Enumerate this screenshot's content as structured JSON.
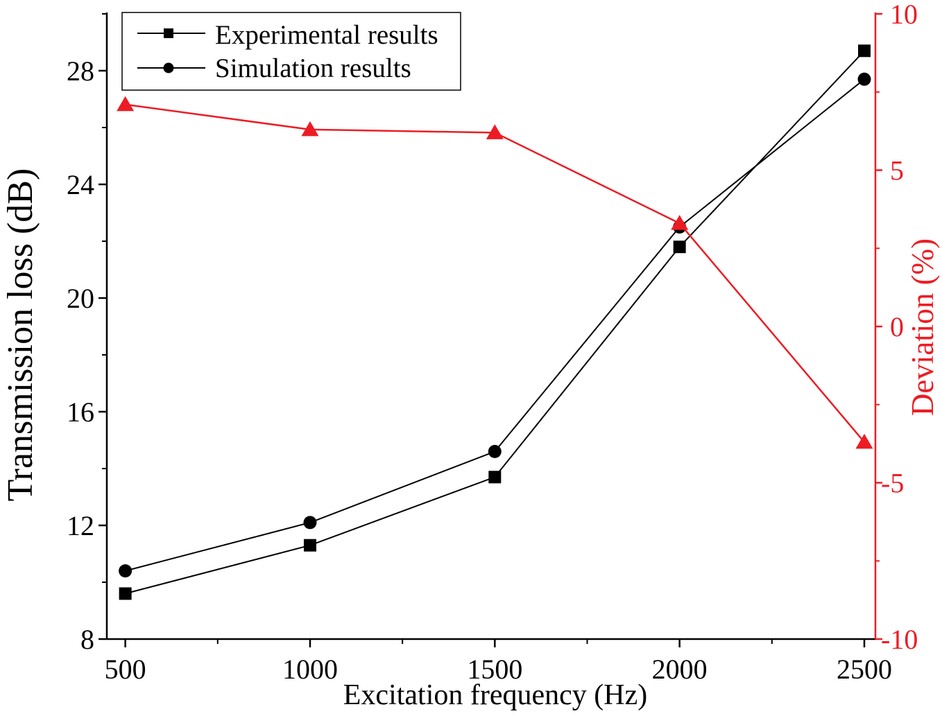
{
  "chart_data": {
    "type": "line",
    "x": [
      500,
      1000,
      1500,
      2000,
      2500
    ],
    "x_axis": {
      "label": "Excitation frequency (Hz)",
      "lim": [
        450,
        2530
      ],
      "ticks": [
        500,
        1000,
        1500,
        2000,
        2500
      ],
      "color": "#000000"
    },
    "y_axis": {
      "label": "Transmission loss (dB)",
      "lim": [
        8,
        30
      ],
      "ticks": [
        8,
        12,
        16,
        20,
        24,
        28
      ],
      "color": "#000000"
    },
    "y2_axis": {
      "label": "Deviation (%)",
      "lim": [
        -10,
        10
      ],
      "ticks": [
        10,
        5,
        0,
        -5,
        -10
      ],
      "color": "#ed1c24"
    },
    "series": [
      {
        "name": "Experimental results",
        "marker": "square",
        "color": "#000000",
        "values": [
          9.6,
          11.3,
          13.7,
          21.8,
          28.7
        ]
      },
      {
        "name": "Simulation results",
        "marker": "circle",
        "color": "#000000",
        "values": [
          10.4,
          12.1,
          14.6,
          22.5,
          27.7
        ]
      }
    ],
    "y2_series": [
      {
        "marker": "triangle",
        "color": "#ed1c24",
        "values": [
          7.1,
          6.3,
          6.2,
          3.3,
          -3.7
        ]
      }
    ],
    "legend": {
      "position": "top-left"
    },
    "grid": false
  }
}
